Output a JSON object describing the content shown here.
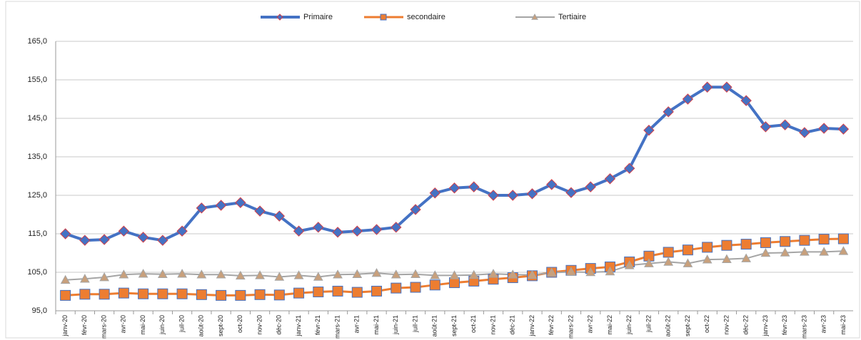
{
  "chart_data": {
    "type": "line",
    "categories": [
      "janv-20",
      "févr-20",
      "mars-20",
      "avr-20",
      "mai-20",
      "juin-20",
      "juil-20",
      "août-20",
      "sept-20",
      "oct-20",
      "nov-20",
      "déc-20",
      "janv-21",
      "févr-21",
      "mars-21",
      "avr-21",
      "mai-21",
      "juin-21",
      "juil-21",
      "août-21",
      "sept-21",
      "oct-21",
      "nov-21",
      "déc-21",
      "janv-22",
      "févr-22",
      "mars-22",
      "avr-22",
      "mai-22",
      "juin-22",
      "juil-22",
      "août-22",
      "sept-22",
      "oct-22",
      "nov-22",
      "déc-22",
      "janv-23",
      "févr-23",
      "mars-23",
      "avr-23",
      "mai-23"
    ],
    "series": [
      {
        "name": "Primaire",
        "color": "#4472c4",
        "marker": "diamond",
        "marker_fill": "#4472c4",
        "marker_stroke": "#d0404a",
        "values": [
          115.0,
          113.3,
          113.5,
          115.7,
          114.1,
          113.3,
          115.7,
          121.7,
          122.4,
          123.1,
          120.9,
          119.6,
          115.7,
          116.7,
          115.4,
          115.7,
          116.1,
          116.7,
          121.3,
          125.6,
          126.9,
          127.2,
          125.0,
          125.0,
          125.4,
          127.8,
          125.7,
          127.2,
          129.3,
          132.0,
          141.9,
          146.7,
          150.0,
          153.1,
          153.1,
          149.6,
          142.8,
          143.3,
          141.3,
          142.4,
          142.2
        ]
      },
      {
        "name": "secondaire",
        "color": "#ed7d31",
        "marker": "square",
        "marker_fill": "#ed7d31",
        "marker_stroke": "#4472c4",
        "values": [
          99.0,
          99.3,
          99.3,
          99.6,
          99.4,
          99.4,
          99.4,
          99.2,
          99.0,
          99.0,
          99.2,
          99.1,
          99.6,
          99.9,
          100.1,
          99.8,
          100.1,
          100.9,
          101.1,
          101.7,
          102.3,
          102.7,
          103.2,
          103.6,
          104.1,
          105.0,
          105.5,
          106.0,
          106.4,
          107.7,
          109.2,
          110.2,
          110.8,
          111.5,
          112.0,
          112.3,
          112.7,
          113.0,
          113.3,
          113.6,
          113.7
        ]
      },
      {
        "name": "Tertiaire",
        "color": "#a5a5a5",
        "marker": "triangle",
        "marker_fill": "#c8a07c",
        "marker_stroke": "#a5a5a5",
        "values": [
          103.0,
          103.3,
          103.7,
          104.4,
          104.6,
          104.5,
          104.6,
          104.4,
          104.4,
          104.1,
          104.2,
          103.8,
          104.2,
          103.8,
          104.4,
          104.5,
          104.8,
          104.4,
          104.5,
          104.2,
          104.2,
          104.3,
          104.6,
          104.4,
          104.3,
          104.9,
          105.1,
          105.0,
          105.2,
          106.8,
          107.3,
          107.7,
          107.3,
          108.3,
          108.4,
          108.6,
          110.0,
          110.1,
          110.3,
          110.3,
          110.5
        ]
      }
    ],
    "ylim": [
      95,
      165
    ],
    "yticks": [
      {
        "value": 95,
        "label": "95,0"
      },
      {
        "value": 105,
        "label": "105,0"
      },
      {
        "value": 115,
        "label": "115,0"
      },
      {
        "value": 125,
        "label": "125,0"
      },
      {
        "value": 135,
        "label": "135,0"
      },
      {
        "value": 145,
        "label": "145,0"
      },
      {
        "value": 155,
        "label": "155,0"
      },
      {
        "value": 165,
        "label": "165,0"
      }
    ],
    "grid": true,
    "legend": "top"
  }
}
